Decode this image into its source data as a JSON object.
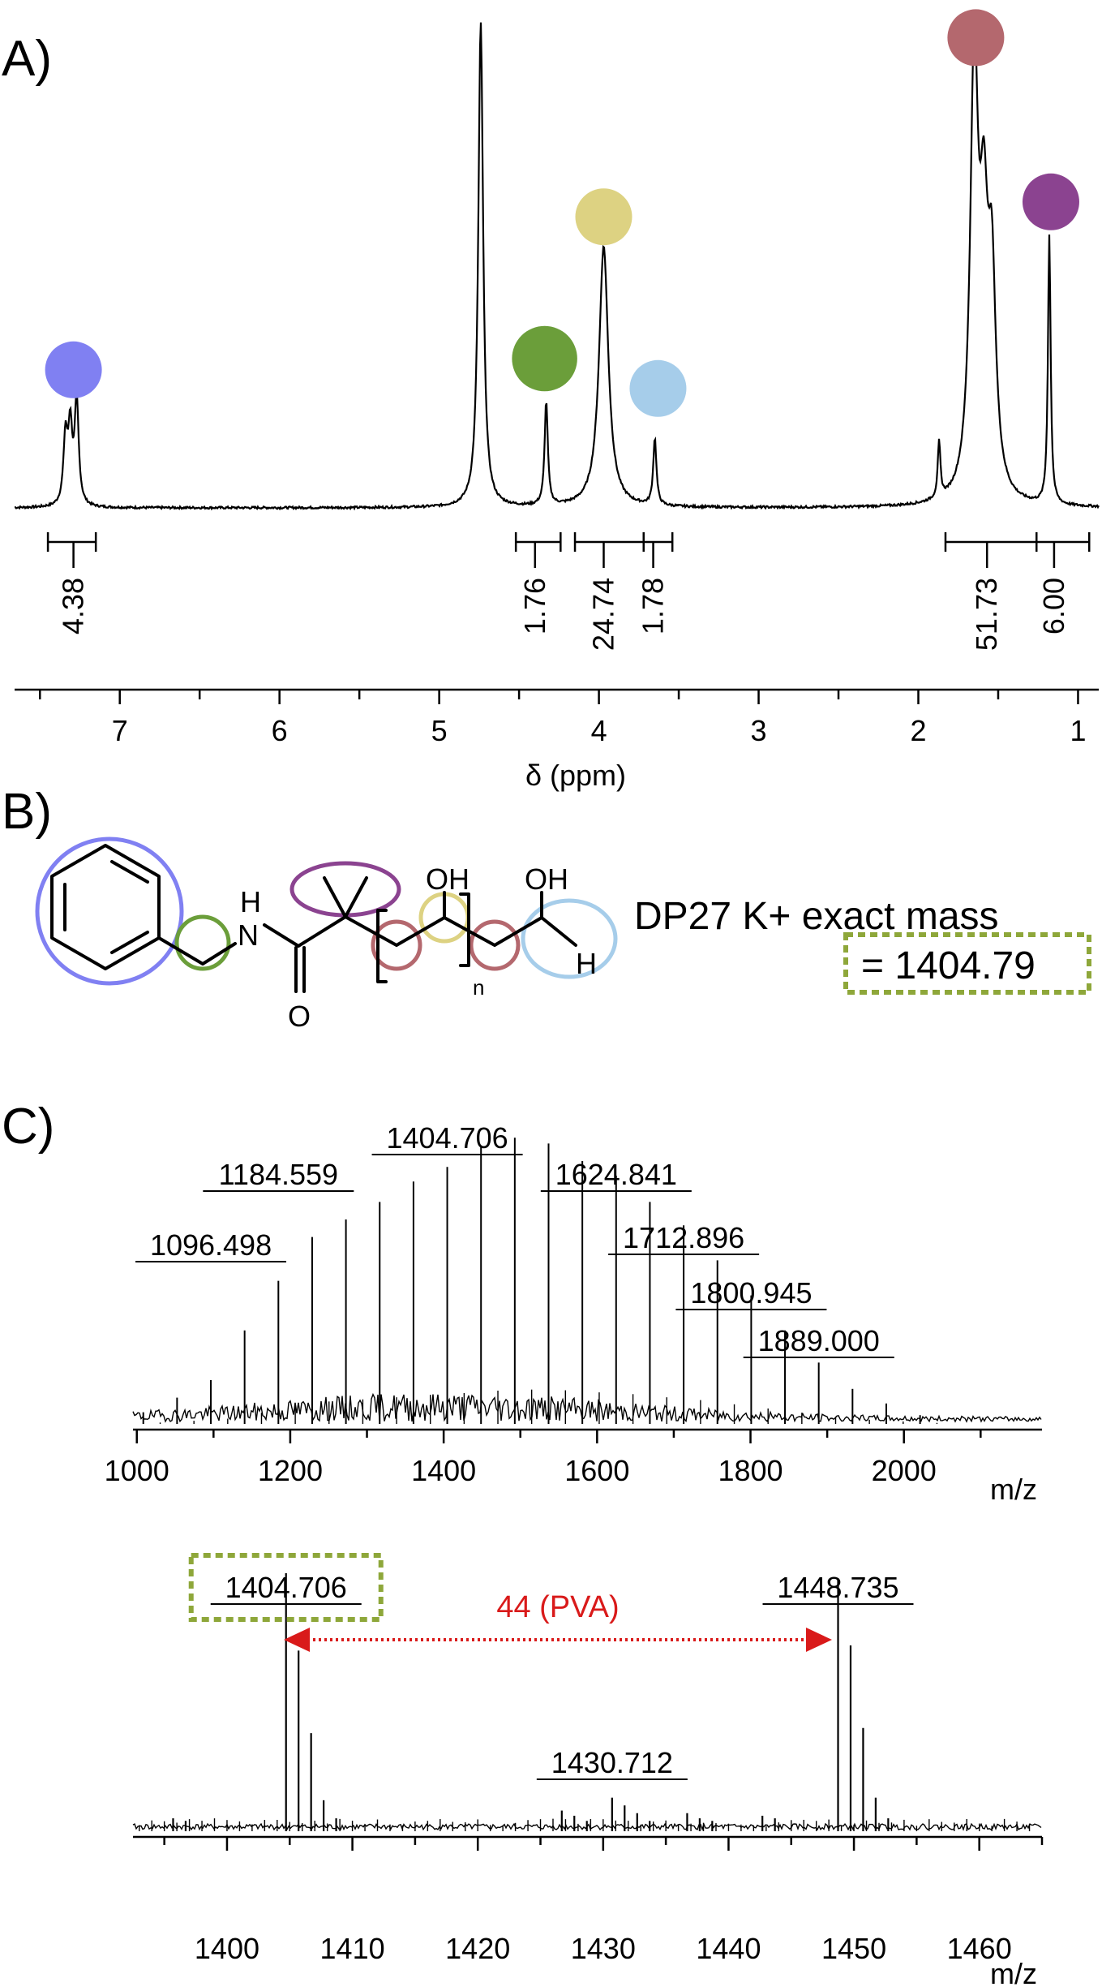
{
  "panels": {
    "A": "A)",
    "B": "B)",
    "C": "C)"
  },
  "chart_data": [
    {
      "type": "line",
      "panel": "A",
      "title": "",
      "xlabel": "δ (ppm)",
      "ylabel": "",
      "xlim": [
        7.75,
        0.85
      ],
      "x_reversed": true,
      "xticks": [
        7,
        6,
        5,
        4,
        3,
        2,
        1
      ],
      "peaks": [
        {
          "ppm": 7.34,
          "height": 0.18,
          "width": 0.015
        },
        {
          "ppm": 7.31,
          "height": 0.2,
          "width": 0.015
        },
        {
          "ppm": 7.27,
          "height": 0.28,
          "width": 0.015
        },
        {
          "ppm": 4.74,
          "height": 1.3,
          "width": 0.018
        },
        {
          "ppm": 4.33,
          "height": 0.28,
          "width": 0.012
        },
        {
          "ppm": 3.97,
          "height": 0.7,
          "width": 0.035
        },
        {
          "ppm": 3.65,
          "height": 0.18,
          "width": 0.012
        },
        {
          "ppm": 1.87,
          "height": 0.15,
          "width": 0.01
        },
        {
          "ppm": 1.65,
          "height": 1.15,
          "width": 0.03
        },
        {
          "ppm": 1.59,
          "height": 0.62,
          "width": 0.03
        },
        {
          "ppm": 1.54,
          "height": 0.55,
          "width": 0.03
        },
        {
          "ppm": 1.18,
          "height": 0.72,
          "width": 0.01
        }
      ],
      "markers": [
        {
          "name": "phenyl",
          "color": "#8080f2",
          "ppm": 7.29,
          "height": 0.37,
          "size": 1.0
        },
        {
          "name": "benzylic-ch2",
          "color": "#6b9e3a",
          "ppm": 4.34,
          "height": 0.4,
          "size": 1.15
        },
        {
          "name": "ch-oh",
          "color": "#ddd282",
          "ppm": 3.97,
          "height": 0.78,
          "size": 1.0
        },
        {
          "name": "ch2oh",
          "color": "#a6cdea",
          "ppm": 3.63,
          "height": 0.32,
          "size": 1.0
        },
        {
          "name": "backbone-ch2",
          "color": "#b4686e",
          "ppm": 1.64,
          "height": 1.26,
          "size": 1.0
        },
        {
          "name": "gem-dimethyl",
          "color": "#8b4390",
          "ppm": 1.17,
          "height": 0.82,
          "size": 1.0
        }
      ],
      "integrals": [
        {
          "label": "4.38",
          "from": 7.45,
          "to": 7.15,
          "center": 7.29
        },
        {
          "label": "1.76",
          "from": 4.52,
          "to": 4.24,
          "center": 4.4
        },
        {
          "label": "24.74",
          "from": 4.15,
          "to": 3.72,
          "center": 3.97
        },
        {
          "label": "1.78",
          "from": 3.72,
          "to": 3.54,
          "center": 3.66
        },
        {
          "label": "51.73",
          "from": 1.83,
          "to": 1.26,
          "center": 1.57
        },
        {
          "label": "6.00",
          "from": 1.26,
          "to": 0.93,
          "center": 1.15
        }
      ]
    },
    {
      "type": "bar",
      "panel": "C-top",
      "title": "",
      "xlabel": "m/z",
      "ylabel": "",
      "xlim": [
        995,
        2180
      ],
      "xticks": [
        1000,
        1200,
        1400,
        1600,
        1800,
        2000
      ],
      "series_start": 1008.44,
      "series_step": 44.0262,
      "series_heights": [
        0.04,
        0.09,
        0.15,
        0.32,
        0.49,
        0.64,
        0.7,
        0.76,
        0.83,
        0.88,
        0.95,
        0.98,
        0.96,
        0.9,
        0.85,
        0.76,
        0.68,
        0.56,
        0.44,
        0.32,
        0.21,
        0.12,
        0.07,
        0.03
      ],
      "labeled_peaks": [
        {
          "mz": "1096.498",
          "x": 1096.498
        },
        {
          "mz": "1184.559",
          "x": 1184.559
        },
        {
          "mz": "1404.706",
          "x": 1404.706
        },
        {
          "mz": "1624.841",
          "x": 1624.841
        },
        {
          "mz": "1712.896",
          "x": 1712.896
        },
        {
          "mz": "1800.945",
          "x": 1800.945
        },
        {
          "mz": "1889.000",
          "x": 1889.0
        }
      ]
    },
    {
      "type": "bar",
      "panel": "C-bottom",
      "title": "",
      "xlabel": "m/z",
      "ylabel": "",
      "xlim": [
        1392.5,
        1465
      ],
      "xticks": [
        1400,
        1410,
        1420,
        1430,
        1440,
        1450,
        1460
      ],
      "clusters": [
        {
          "mz": 1404.706,
          "heights": [
            1.0,
            0.7,
            0.38,
            0.12,
            0.05
          ]
        },
        {
          "mz": 1448.735,
          "heights": [
            0.98,
            0.72,
            0.4,
            0.13,
            0.05
          ]
        },
        {
          "mz": 1430.712,
          "heights": [
            0.13,
            0.1,
            0.07,
            0.04
          ]
        },
        {
          "mz": 1426.7,
          "heights": [
            0.08,
            0.06,
            0.04
          ]
        },
        {
          "mz": 1436.7,
          "heights": [
            0.07,
            0.05,
            0.04
          ]
        },
        {
          "mz": 1442.7,
          "heights": [
            0.06,
            0.05
          ]
        },
        {
          "mz": 1395.7,
          "heights": [
            0.05,
            0.04
          ]
        }
      ],
      "labeled_peaks": [
        {
          "mz": "1404.706",
          "x": 1404.706,
          "boxed": true
        },
        {
          "mz": "1430.712",
          "x": 1430.712
        },
        {
          "mz": "1448.735",
          "x": 1448.735
        }
      ],
      "annotation": "44 (PVA)"
    }
  ],
  "structure": {
    "nh_label": "H",
    "n_label": "N",
    "o_label": "O",
    "oh1_label": "OH",
    "oh2_label": "OH",
    "h_label": "H",
    "repeat_label": "n",
    "mass_label": "DP27 K+ exact mass",
    "mass_value": "= 1404.79"
  },
  "colors": {
    "phenyl": "#8080f2",
    "green": "#6b9e3a",
    "yellow": "#ddd282",
    "lightblue": "#a6cdea",
    "rose": "#b4686e",
    "purple": "#8b4390",
    "dashed_box": "#8ea73a",
    "annotation_red": "#d91a1a"
  }
}
